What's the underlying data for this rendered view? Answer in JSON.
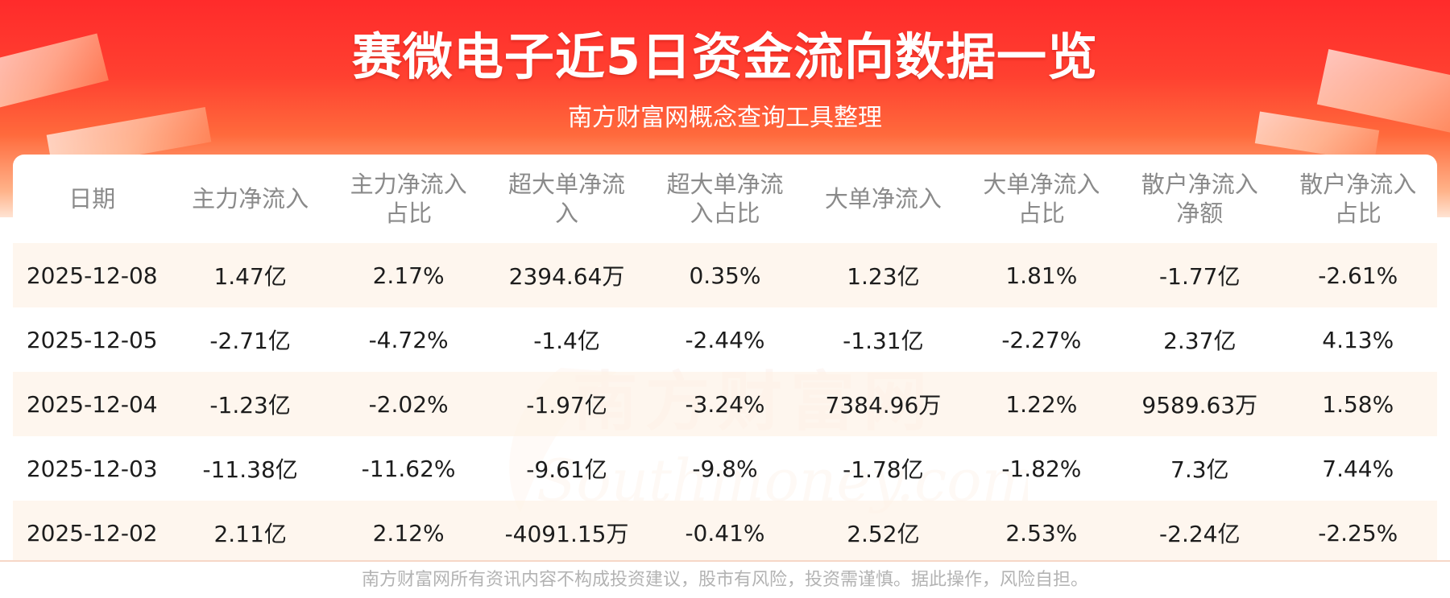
{
  "header": {
    "title": "赛微电子近5日资金流向数据一览",
    "subtitle": "南方财富网概念查询工具整理"
  },
  "colors": {
    "banner_top": "#ff2b2b",
    "banner_bottom": "#ffe3d3",
    "row_shade": "#fef4eb",
    "header_text": "#8a8a8a",
    "cell_text": "#1c1c1c"
  },
  "chart_data": {
    "type": "table",
    "columns": [
      [
        "日期"
      ],
      [
        "主力净流入"
      ],
      [
        "主力净流入",
        "占比"
      ],
      [
        "超大单净流",
        "入"
      ],
      [
        "超大单净流",
        "入占比"
      ],
      [
        "大单净流入"
      ],
      [
        "大单净流入",
        "占比"
      ],
      [
        "散户净流入",
        "净额"
      ],
      [
        "散户净流入",
        "占比"
      ]
    ],
    "rows": [
      [
        "2025-12-08",
        "1.47亿",
        "2.17%",
        "2394.64万",
        "0.35%",
        "1.23亿",
        "1.81%",
        "-1.77亿",
        "-2.61%"
      ],
      [
        "2025-12-05",
        "-2.71亿",
        "-4.72%",
        "-1.4亿",
        "-2.44%",
        "-1.31亿",
        "-2.27%",
        "2.37亿",
        "4.13%"
      ],
      [
        "2025-12-04",
        "-1.23亿",
        "-2.02%",
        "-1.97亿",
        "-3.24%",
        "7384.96万",
        "1.22%",
        "9589.63万",
        "1.58%"
      ],
      [
        "2025-12-03",
        "-11.38亿",
        "-11.62%",
        "-9.61亿",
        "-9.8%",
        "-1.78亿",
        "-1.82%",
        "7.3亿",
        "7.44%"
      ],
      [
        "2025-12-02",
        "2.11亿",
        "2.12%",
        "-4091.15万",
        "-0.41%",
        "2.52亿",
        "2.53%",
        "-2.24亿",
        "-2.25%"
      ]
    ]
  },
  "watermark": {
    "cn": "南方财富网",
    "en": "Southmoney.com"
  },
  "footer": {
    "disclaimer": "南方财富网所有资讯内容不构成投资建议，股市有风险，投资需谨慎。据此操作，风险自担。"
  }
}
